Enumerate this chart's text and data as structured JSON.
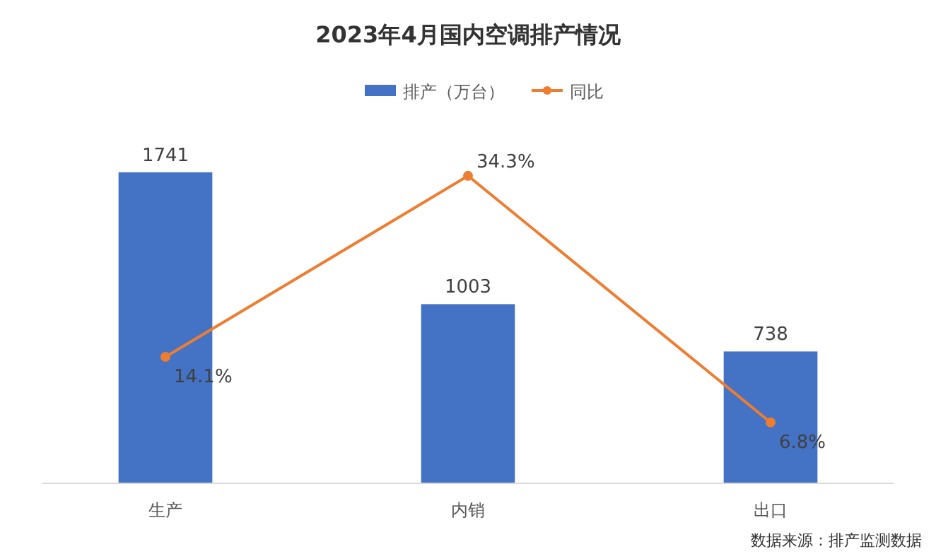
{
  "chart_data": {
    "type": "bar",
    "title": "2023年4月国内空调排产情况",
    "categories": [
      "生产",
      "内销",
      "出口"
    ],
    "series": [
      {
        "name": "排产（万台）",
        "color": "#4472c4",
        "values": [
          1741,
          1003,
          738
        ],
        "data_labels": true
      },
      {
        "name": "同比",
        "type": "line",
        "axis": "y2",
        "color": "#ed7d31",
        "values": [
          14.1,
          34.3,
          6.8
        ],
        "value_labels": [
          "14.1%",
          "34.3%",
          "6.8%"
        ],
        "marker": "circle"
      }
    ],
    "tick_labels": "x",
    "legend": "top",
    "annotations": [
      "数据来源：排产监测数据"
    ]
  }
}
